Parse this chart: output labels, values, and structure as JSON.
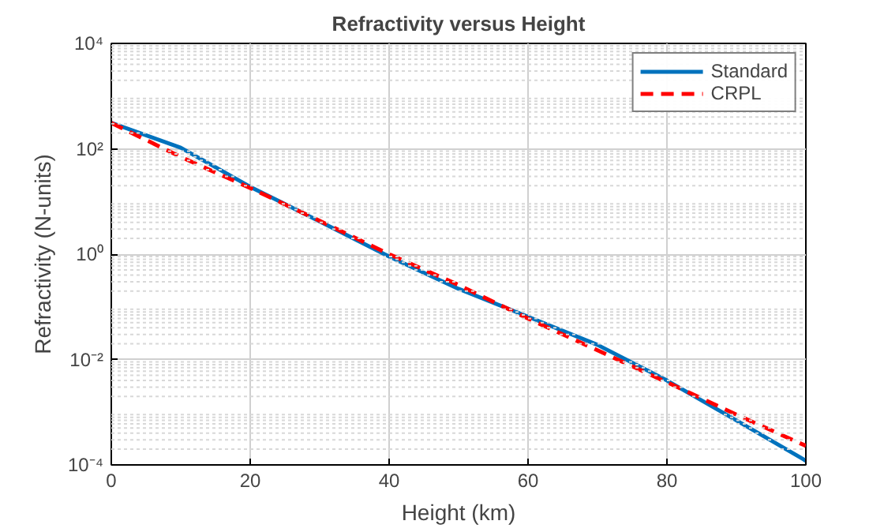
{
  "chart_data": {
    "type": "line",
    "title": "Refractivity versus Height",
    "xlabel": "Height (km)",
    "ylabel": "Refractivity (N-units)",
    "log": "y",
    "grid": true,
    "legend": "top right",
    "line_style": "solid",
    "marker": "none",
    "xlim": [
      0,
      100
    ],
    "xticks": [
      0,
      20,
      40,
      60,
      80,
      100
    ],
    "ylim": [
      0.0001,
      10000
    ],
    "yticks": [
      {
        "value": 0.0001,
        "label": "10⁻⁴"
      },
      {
        "value": 0.01,
        "label": "10⁻²"
      },
      {
        "value": 1,
        "label": "10⁰"
      },
      {
        "value": 100,
        "label": "10²"
      },
      {
        "value": 10000,
        "label": "10⁴"
      }
    ],
    "series": [
      {
        "name": "Standard",
        "color": "#0072bd",
        "x": [
          0,
          5,
          10,
          20,
          30,
          40,
          50,
          60,
          70,
          80,
          90,
          100
        ],
        "values": [
          310,
          180,
          105,
          19,
          4.2,
          0.9,
          0.22,
          0.065,
          0.019,
          0.004,
          0.0007,
          0.00012
        ]
      },
      {
        "name": "CRPL",
        "color": "#ff0000",
        "line_style": "dashed",
        "x": [
          0,
          10,
          20,
          30,
          40,
          50,
          60,
          70,
          80,
          90,
          100
        ],
        "values": [
          310,
          70,
          18,
          4.3,
          1.0,
          0.26,
          0.06,
          0.015,
          0.0037,
          0.0009,
          0.00023
        ]
      }
    ]
  }
}
